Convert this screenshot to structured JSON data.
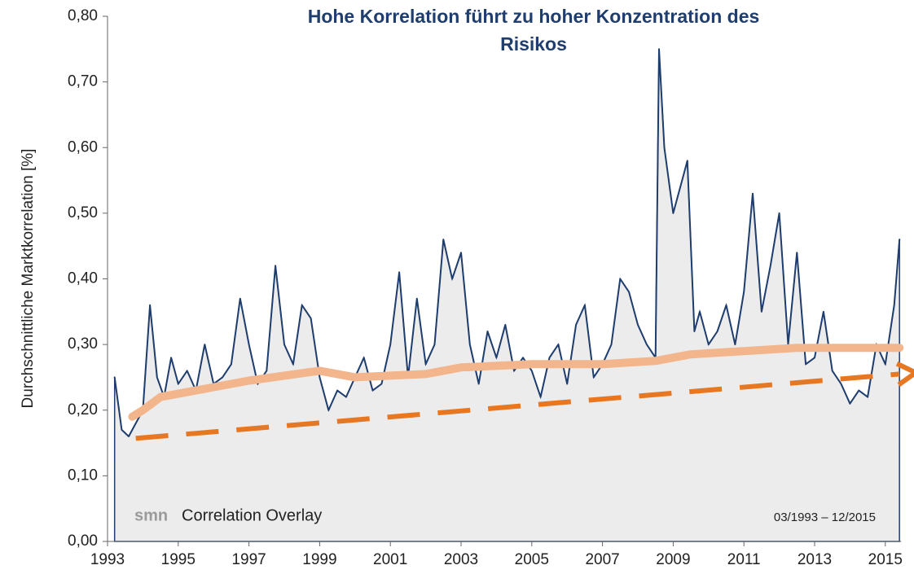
{
  "chart_data": {
    "type": "line",
    "title": [
      "Hohe Korrelation führt zu hoher Konzentration des",
      "Risikos"
    ],
    "y_label": "Durchschnittliche Marktkorrelation [%]",
    "annotations": {
      "brand": "smn",
      "brand_text": "Correlation Overlay",
      "period": "03/1993 – 12/2015"
    },
    "xlim": [
      1993,
      2015.45
    ],
    "xticks": [
      1993,
      1995,
      1997,
      1999,
      2001,
      2003,
      2005,
      2007,
      2009,
      2011,
      2013,
      2015
    ],
    "ylim": [
      0,
      0.8
    ],
    "yticks": [
      {
        "value": 0,
        "label": "0,00"
      },
      {
        "value": 0.1,
        "label": "0,10"
      },
      {
        "value": 0.2,
        "label": "0,20"
      },
      {
        "value": 0.3,
        "label": "0,30"
      },
      {
        "value": 0.4,
        "label": "0,40"
      },
      {
        "value": 0.5,
        "label": "0,50"
      },
      {
        "value": 0.6,
        "label": "0,60"
      },
      {
        "value": 0.7,
        "label": "0,70"
      },
      {
        "value": 0.8,
        "label": "0,80"
      }
    ],
    "series": [
      {
        "color": "#1f3e6e",
        "area": "#ececec",
        "width": 2,
        "x": [
          1993.2,
          1993.4,
          1993.6,
          1993.8,
          1994.0,
          1994.2,
          1994.4,
          1994.6,
          1994.8,
          1995.0,
          1995.25,
          1995.5,
          1995.75,
          1996.0,
          1996.25,
          1996.5,
          1996.75,
          1997.0,
          1997.25,
          1997.5,
          1997.75,
          1998.0,
          1998.25,
          1998.5,
          1998.75,
          1999.0,
          1999.25,
          1999.5,
          1999.75,
          2000.0,
          2000.25,
          2000.5,
          2000.75,
          2001.0,
          2001.25,
          2001.5,
          2001.75,
          2002.0,
          2002.25,
          2002.5,
          2002.75,
          2003.0,
          2003.25,
          2003.5,
          2003.75,
          2004.0,
          2004.25,
          2004.5,
          2004.75,
          2005.0,
          2005.25,
          2005.5,
          2005.75,
          2006.0,
          2006.25,
          2006.5,
          2006.75,
          2007.0,
          2007.25,
          2007.5,
          2007.75,
          2008.0,
          2008.25,
          2008.5,
          2008.6,
          2008.75,
          2009.0,
          2009.25,
          2009.4,
          2009.6,
          2009.75,
          2010.0,
          2010.25,
          2010.5,
          2010.75,
          2011.0,
          2011.25,
          2011.5,
          2011.75,
          2012.0,
          2012.25,
          2012.5,
          2012.75,
          2013.0,
          2013.25,
          2013.5,
          2013.75,
          2014.0,
          2014.25,
          2014.5,
          2014.75,
          2015.0,
          2015.25,
          2015.4
        ],
        "values": [
          0.25,
          0.17,
          0.16,
          0.18,
          0.2,
          0.36,
          0.25,
          0.22,
          0.28,
          0.24,
          0.26,
          0.23,
          0.3,
          0.24,
          0.25,
          0.27,
          0.37,
          0.3,
          0.24,
          0.26,
          0.42,
          0.3,
          0.27,
          0.36,
          0.34,
          0.25,
          0.2,
          0.23,
          0.22,
          0.25,
          0.28,
          0.23,
          0.24,
          0.3,
          0.41,
          0.25,
          0.37,
          0.27,
          0.3,
          0.46,
          0.4,
          0.44,
          0.3,
          0.24,
          0.32,
          0.28,
          0.33,
          0.26,
          0.28,
          0.26,
          0.22,
          0.28,
          0.3,
          0.24,
          0.33,
          0.36,
          0.25,
          0.27,
          0.3,
          0.4,
          0.38,
          0.33,
          0.3,
          0.28,
          0.75,
          0.6,
          0.5,
          0.55,
          0.58,
          0.32,
          0.35,
          0.3,
          0.32,
          0.36,
          0.3,
          0.38,
          0.53,
          0.35,
          0.42,
          0.5,
          0.3,
          0.44,
          0.27,
          0.28,
          0.35,
          0.26,
          0.24,
          0.21,
          0.23,
          0.22,
          0.3,
          0.27,
          0.36,
          0.46
        ]
      },
      {
        "color": "#f2b58c",
        "width": 10,
        "x": [
          1993.7,
          1994.0,
          1994.5,
          1995.5,
          1997,
          1999,
          2000,
          2002,
          2003,
          2005,
          2007,
          2008.5,
          2009.5,
          2011,
          2012.5,
          2015.4
        ],
        "values": [
          0.19,
          0.2,
          0.22,
          0.23,
          0.245,
          0.26,
          0.25,
          0.255,
          0.265,
          0.27,
          0.27,
          0.275,
          0.285,
          0.29,
          0.295,
          0.295
        ]
      },
      {
        "color": "#e87722",
        "width": 6,
        "dashed": true,
        "arrow": true,
        "x": [
          1993.8,
          2015.4
        ],
        "values": [
          0.157,
          0.255
        ]
      }
    ]
  }
}
